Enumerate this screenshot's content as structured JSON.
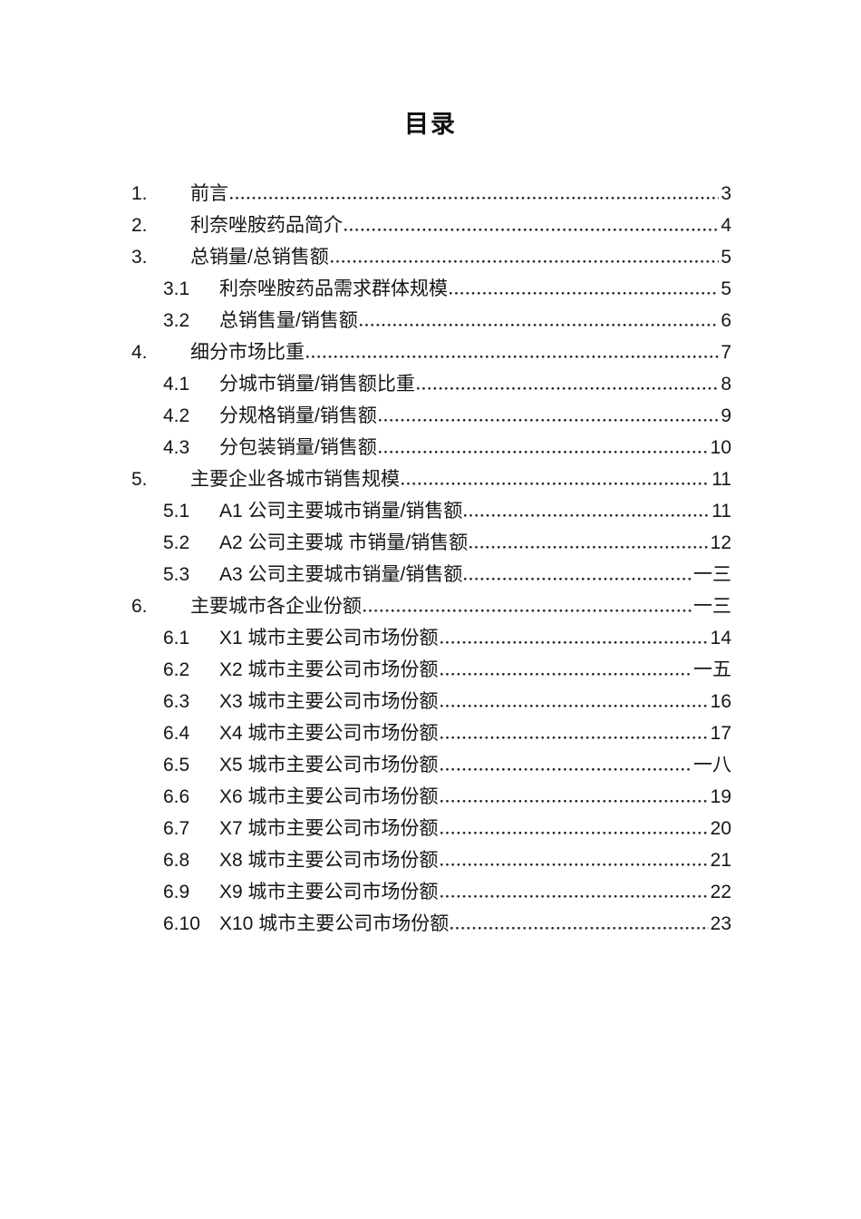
{
  "document": {
    "title": "目录"
  },
  "colors": {
    "background": "#ffffff",
    "text": "#1a1a1a"
  },
  "toc": {
    "entries": [
      {
        "num": "1.",
        "level": 1,
        "label": "前言",
        "page": "3"
      },
      {
        "num": "2.",
        "level": 1,
        "label": "利奈唑胺药品简介",
        "page": "4"
      },
      {
        "num": "3.",
        "level": 1,
        "label": "总销量/总销售额",
        "page": "5"
      },
      {
        "num": "3.1",
        "level": 2,
        "label": "利奈唑胺药品需求群体规模",
        "page": "5"
      },
      {
        "num": "3.2",
        "level": 2,
        "label": "总销售量/销售额",
        "page": "6"
      },
      {
        "num": "4.",
        "level": 1,
        "label": "细分市场比重",
        "page": "7"
      },
      {
        "num": "4.1",
        "level": 2,
        "label": "分城市销量/销售额比重",
        "page": "8"
      },
      {
        "num": "4.2",
        "level": 2,
        "label": "分规格销量/销售额",
        "page": "9"
      },
      {
        "num": "4.3",
        "level": 2,
        "label": "分包装销量/销售额",
        "page": "10"
      },
      {
        "num": "5.",
        "level": 1,
        "label": "主要企业各城市销售规模",
        "page": "11"
      },
      {
        "num": "5.1",
        "level": 2,
        "label": "A1 公司主要城市销量/销售额",
        "page": "11"
      },
      {
        "num": "5.2",
        "level": 2,
        "label": "A2 公司主要城 市销量/销售额",
        "page": "12"
      },
      {
        "num": "5.3",
        "level": 2,
        "label": "A3 公司主要城市销量/销售额",
        "page": "一三"
      },
      {
        "num": "6.",
        "level": 1,
        "label": "主要城市各企业份额",
        "page": "一三"
      },
      {
        "num": "6.1",
        "level": 2,
        "label": "X1 城市主要公司市场份额",
        "page": "14"
      },
      {
        "num": "6.2",
        "level": 2,
        "label": "X2 城市主要公司市场份额",
        "page": "一五"
      },
      {
        "num": "6.3",
        "level": 2,
        "label": "X3 城市主要公司市场份额",
        "page": "16"
      },
      {
        "num": "6.4",
        "level": 2,
        "label": "X4 城市主要公司市场份额",
        "page": "17"
      },
      {
        "num": "6.5",
        "level": 2,
        "label": "X5 城市主要公司市场份额",
        "page": "一八"
      },
      {
        "num": "6.6",
        "level": 2,
        "label": "X6 城市主要公司市场份额",
        "page": "19"
      },
      {
        "num": "6.7",
        "level": 2,
        "label": "X7 城市主要公司市场份额",
        "page": "20"
      },
      {
        "num": "6.8",
        "level": 2,
        "label": "X8 城市主要公司市场份额",
        "page": "21"
      },
      {
        "num": "6.9",
        "level": 2,
        "label": "X9 城市主要公司市场份额",
        "page": "22"
      },
      {
        "num": "6.10",
        "level": 2,
        "label": "X10 城市主要公司市场份额",
        "page": "23"
      }
    ]
  }
}
